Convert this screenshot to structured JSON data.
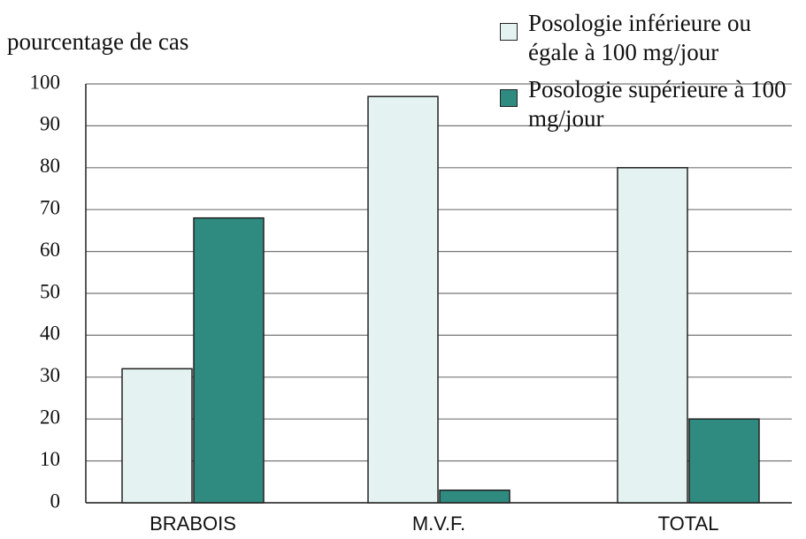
{
  "chart_data": {
    "type": "bar",
    "y_label": "pourcentage de cas",
    "categories": [
      "BRABOIS",
      "M.V.F.",
      "TOTAL"
    ],
    "series": [
      {
        "name": "Posologie inférieure ou égale à 100 mg/jour",
        "color": "#e4f3f2",
        "values": [
          32,
          97,
          80
        ]
      },
      {
        "name": "Posologie supérieure à 100 mg/jour",
        "color": "#2f8a80",
        "values": [
          68,
          3,
          20
        ]
      }
    ],
    "ylim": [
      0,
      100
    ],
    "yticks": [
      0,
      10,
      20,
      30,
      40,
      50,
      60,
      70,
      80,
      90,
      100
    ],
    "grid": true,
    "legend": "top-right"
  }
}
